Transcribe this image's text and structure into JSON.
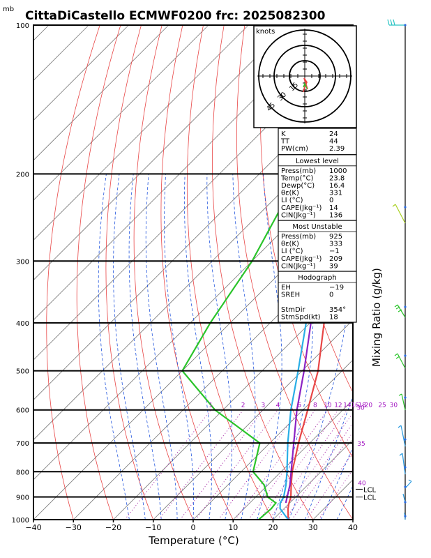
{
  "chart_data": {
    "type": "line",
    "title": "CittaDiCastello ECMWF0200  frc: 2025082300",
    "y_unit": "mb",
    "xlabel": "Temperature (°C)",
    "ylabel_right": "Mixing Ratio (g/kg)",
    "x_ticks": [
      -40,
      -30,
      -20,
      -10,
      0,
      10,
      20,
      30,
      40
    ],
    "xlim": [
      -40,
      40
    ],
    "ylim": [
      1000,
      100
    ],
    "y_scale": "log",
    "pressure_ticks": [
      100,
      200,
      300,
      400,
      500,
      600,
      700,
      800,
      900,
      1000
    ],
    "mixing_ratio_labels": [
      "1",
      "2",
      "3",
      "4",
      "6",
      "8",
      "10",
      "12",
      "14",
      "16",
      "18",
      "20",
      "25",
      "30"
    ],
    "pseudoadiabat_labels": [
      "30",
      "35",
      "40"
    ],
    "lcl_labels": [
      "LCL",
      "LCL"
    ],
    "series": [
      {
        "name": "Temperature",
        "color": "#e84545",
        "points": [
          [
            1000,
            23.8
          ],
          [
            950,
            21
          ],
          [
            925,
            19.8
          ],
          [
            900,
            18.8
          ],
          [
            850,
            15.8
          ],
          [
            800,
            12.8
          ],
          [
            700,
            7.2
          ],
          [
            600,
            1.2
          ],
          [
            500,
            -6
          ],
          [
            400,
            -16.5
          ],
          [
            300,
            -31
          ],
          [
            250,
            -41
          ],
          [
            200,
            -51
          ],
          [
            150,
            -58
          ],
          [
            100,
            -67
          ]
        ]
      },
      {
        "name": "Dew point",
        "color": "#2ac42a",
        "points": [
          [
            1000,
            16.4
          ],
          [
            950,
            16.8
          ],
          [
            925,
            16.5
          ],
          [
            900,
            13
          ],
          [
            850,
            9
          ],
          [
            800,
            3
          ],
          [
            700,
            -2.5
          ],
          [
            600,
            -22
          ],
          [
            500,
            -40
          ],
          [
            400,
            -45
          ],
          [
            300,
            -50
          ],
          [
            200,
            -60
          ],
          [
            150,
            -66
          ],
          [
            100,
            -75
          ]
        ]
      },
      {
        "name": "Parcel",
        "color": "#29aee6",
        "points": [
          [
            1000,
            23.8
          ],
          [
            950,
            19
          ],
          [
            925,
            17.6
          ],
          [
            900,
            17
          ],
          [
            850,
            14.5
          ],
          [
            800,
            11.5
          ],
          [
            700,
            4.5
          ],
          [
            600,
            -3
          ],
          [
            500,
            -11
          ],
          [
            400,
            -21
          ],
          [
            300,
            -37
          ],
          [
            250,
            -47
          ],
          [
            200,
            -58
          ],
          [
            150,
            -69
          ],
          [
            120,
            -75
          ]
        ]
      },
      {
        "name": "Virtual parcel",
        "color": "#8a22c4",
        "points": [
          [
            925,
            19
          ],
          [
            850,
            15.5
          ],
          [
            700,
            6
          ],
          [
            600,
            -1.5
          ],
          [
            500,
            -9.5
          ],
          [
            400,
            -19.8
          ],
          [
            300,
            -35.5
          ],
          [
            250,
            -45
          ],
          [
            200,
            -55.5
          ],
          [
            150,
            -66.5
          ],
          [
            115,
            -74
          ]
        ]
      }
    ],
    "hodograph": {
      "units_label": "knots",
      "ring_labels": [
        "15",
        "30",
        "45"
      ]
    },
    "indices": {
      "top": [
        {
          "label": "K",
          "value": "24"
        },
        {
          "label": "TT",
          "value": "44"
        },
        {
          "label": "PW(cm)",
          "value": "2.39"
        }
      ],
      "sections": [
        {
          "title": "Lowest level",
          "rows": [
            {
              "label": "Press(mb)",
              "value": "1000"
            },
            {
              "label": "Temp(°C)",
              "value": "23.8"
            },
            {
              "label": "Dewp(°C)",
              "value": "16.4"
            },
            {
              "label": "θε(K)",
              "value": "331"
            },
            {
              "label": "LI (°C)",
              "value": "0"
            },
            {
              "label": "CAPE(Jkg⁻¹)",
              "value": "14"
            },
            {
              "label": "CIN(Jkg⁻¹)",
              "value": "136"
            }
          ]
        },
        {
          "title": "Most Unstable",
          "rows": [
            {
              "label": "Press(mb)",
              "value": "925"
            },
            {
              "label": "θε(K)",
              "value": "333"
            },
            {
              "label": "LI (°C)",
              "value": "−1"
            },
            {
              "label": "CAPE(Jkg⁻¹)",
              "value": "209"
            },
            {
              "label": "CIN(Jkg⁻¹)",
              "value": "39"
            }
          ]
        },
        {
          "title": "Hodograph",
          "rows": [
            {
              "label": "EH",
              "value": "−19"
            },
            {
              "label": "SREH",
              "value": "0"
            },
            {
              "label": "",
              "value": ""
            },
            {
              "label": "StmDir",
              "value": "354°"
            },
            {
              "label": "StmSpd(kt)",
              "value": "18"
            }
          ]
        }
      ]
    }
  }
}
